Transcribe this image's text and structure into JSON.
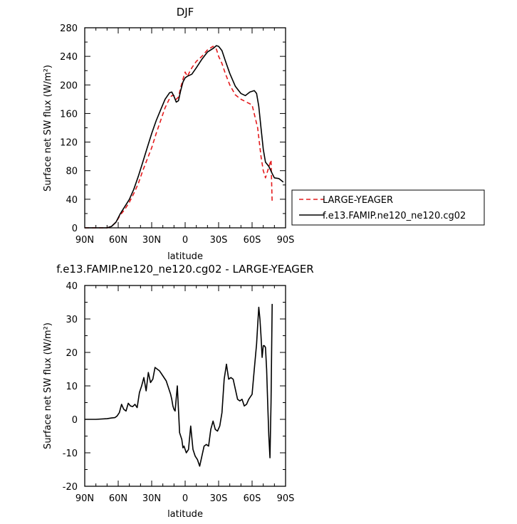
{
  "chart_data": [
    {
      "type": "line",
      "title": "DJF",
      "xlabel": "latitude",
      "ylabel": "Surface net SW flux (W/m²)",
      "xlim": [
        90,
        -90
      ],
      "ylim": [
        0,
        280
      ],
      "xticks": [
        90,
        60,
        30,
        0,
        -30,
        -60,
        -90
      ],
      "xtick_labels": [
        "90N",
        "60N",
        "30N",
        "0",
        "30S",
        "60S",
        "90S"
      ],
      "yticks": [
        0,
        40,
        80,
        120,
        160,
        200,
        240,
        280
      ],
      "ytick_labels": [
        "0",
        "40",
        "80",
        "120",
        "160",
        "200",
        "240",
        "280"
      ],
      "legend_position": "right",
      "series": [
        {
          "name": "LARGE-YEAGER",
          "color": "#e41a1c",
          "dash": "dashed",
          "x": [
            90,
            80,
            70,
            66,
            62,
            58,
            54,
            50,
            46,
            42,
            38,
            34,
            30,
            26,
            22,
            18,
            14,
            12,
            10,
            8,
            6,
            4,
            2,
            0,
            -2,
            -6,
            -10,
            -15,
            -20,
            -25,
            -28,
            -30,
            -33,
            -36,
            -40,
            -45,
            -50,
            -55,
            -60,
            -65,
            -68,
            -70,
            -72,
            -75,
            -77,
            -78
          ],
          "y": [
            0,
            0,
            0,
            2,
            8,
            18,
            26,
            36,
            48,
            62,
            80,
            96,
            112,
            132,
            150,
            168,
            181,
            185,
            185,
            180,
            183,
            196,
            208,
            218,
            212,
            224,
            233,
            240,
            249,
            254,
            250,
            240,
            230,
            216,
            200,
            186,
            180,
            176,
            172,
            140,
            100,
            80,
            70,
            85,
            95,
            35
          ]
        },
        {
          "name": "f.e13.FAMIP.ne120_ne120.cg02",
          "color": "#000000",
          "dash": "solid",
          "x": [
            90,
            80,
            70,
            66,
            62,
            58,
            54,
            50,
            46,
            42,
            38,
            34,
            30,
            26,
            22,
            18,
            14,
            12,
            10,
            8,
            6,
            4,
            2,
            0,
            -2,
            -6,
            -10,
            -15,
            -20,
            -25,
            -28,
            -30,
            -33,
            -36,
            -40,
            -45,
            -50,
            -54,
            -58,
            -62,
            -64,
            -66,
            -68,
            -70,
            -72,
            -75,
            -78,
            -80,
            -84,
            -88
          ],
          "y": [
            0,
            0,
            0,
            2,
            8,
            20,
            30,
            40,
            54,
            72,
            92,
            112,
            132,
            150,
            165,
            180,
            189,
            190,
            184,
            176,
            178,
            192,
            204,
            210,
            212,
            215,
            224,
            236,
            246,
            251,
            255,
            254,
            248,
            234,
            216,
            198,
            188,
            185,
            190,
            192,
            188,
            170,
            140,
            110,
            92,
            86,
            76,
            70,
            69,
            64
          ]
        }
      ]
    },
    {
      "type": "line",
      "title": "f.e13.FAMIP.ne120_ne120.cg02 - LARGE-YEAGER",
      "xlabel": "latitude",
      "ylabel": "Surface net SW flux (W/m²)",
      "xlim": [
        90,
        -90
      ],
      "ylim": [
        -20,
        40
      ],
      "xticks": [
        90,
        60,
        30,
        0,
        -30,
        -60,
        -90
      ],
      "xtick_labels": [
        "90N",
        "60N",
        "30N",
        "0",
        "30S",
        "60S",
        "90S"
      ],
      "yticks": [
        -20,
        -10,
        0,
        10,
        20,
        30,
        40
      ],
      "ytick_labels": [
        "-20",
        "-10",
        "0",
        "10",
        "20",
        "30",
        "40"
      ],
      "series": [
        {
          "color": "#000000",
          "dash": "solid",
          "x": [
            90,
            80,
            70,
            68,
            66,
            63,
            61,
            59,
            57,
            55,
            53,
            51,
            49,
            47,
            45,
            43,
            41,
            39,
            37,
            35,
            33,
            31,
            29,
            27,
            25,
            23,
            21,
            17,
            13,
            12,
            11,
            10,
            9,
            7,
            5,
            3,
            2,
            1,
            -1,
            -3,
            -5,
            -7,
            -9,
            -11,
            -13,
            -15,
            -17,
            -19,
            -21,
            -23,
            -25,
            -27,
            -29,
            -31,
            -33,
            -35,
            -37,
            -39,
            -41,
            -43,
            -45,
            -47,
            -49,
            -51,
            -53,
            -55,
            -57,
            -60,
            -62,
            -64,
            -65,
            -66,
            -67,
            -68,
            -69,
            -70,
            -71,
            -72,
            -73,
            -74,
            -75,
            -76,
            -77,
            -78
          ],
          "y": [
            0,
            0,
            0.2,
            0.3,
            0.4,
            0.5,
            1.0,
            2.0,
            4.5,
            3.0,
            2.5,
            4.8,
            4.0,
            3.8,
            4.5,
            3.5,
            8.0,
            10.0,
            12.5,
            8.5,
            14.0,
            11.0,
            12.0,
            15.5,
            15.0,
            14.5,
            13.5,
            11.5,
            7.5,
            6.0,
            4.0,
            3.0,
            2.5,
            10.0,
            -4.0,
            -6.0,
            -8.5,
            -8.0,
            -10.0,
            -9.0,
            -2.0,
            -9.0,
            -11.0,
            -12.0,
            -14.0,
            -11.0,
            -8.0,
            -7.5,
            -8.0,
            -3.0,
            -0.5,
            -3.0,
            -3.5,
            -2.0,
            2.0,
            12.0,
            16.5,
            12.0,
            12.5,
            12.0,
            9.0,
            6.0,
            5.5,
            6.0,
            4.0,
            4.5,
            6.0,
            7.5,
            15.0,
            22.5,
            28.0,
            33.5,
            30.0,
            25.0,
            18.5,
            22.0,
            22.0,
            21.5,
            15.0,
            5.0,
            -5.0,
            -11.5,
            5.0,
            34.5
          ]
        }
      ]
    }
  ]
}
